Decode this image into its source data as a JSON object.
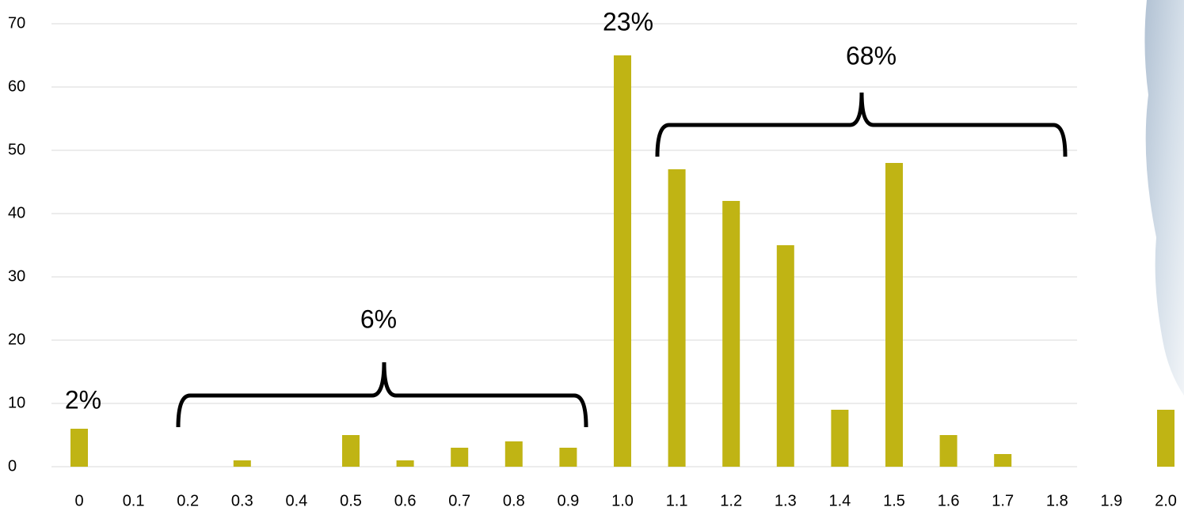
{
  "chart_data": {
    "type": "bar",
    "categories": [
      "0",
      "0.1",
      "0.2",
      "0.3",
      "0.4",
      "0.5",
      "0.6",
      "0.7",
      "0.8",
      "0.9",
      "1.0",
      "1.1",
      "1.2",
      "1.3",
      "1.4",
      "1.5",
      "1.6",
      "1.7",
      "1.8",
      "1.9",
      "2.0"
    ],
    "values": [
      6,
      0,
      0,
      1,
      0,
      5,
      1,
      3,
      4,
      3,
      65,
      47,
      42,
      35,
      9,
      48,
      5,
      2,
      0,
      0,
      9
    ],
    "color": "#c0b414",
    "ylim": [
      0,
      70
    ],
    "yticks": [
      0,
      10,
      20,
      30,
      40,
      50,
      60,
      70
    ],
    "grid": true,
    "annotations": [
      "2%",
      "6%",
      "23%",
      "68%"
    ]
  }
}
